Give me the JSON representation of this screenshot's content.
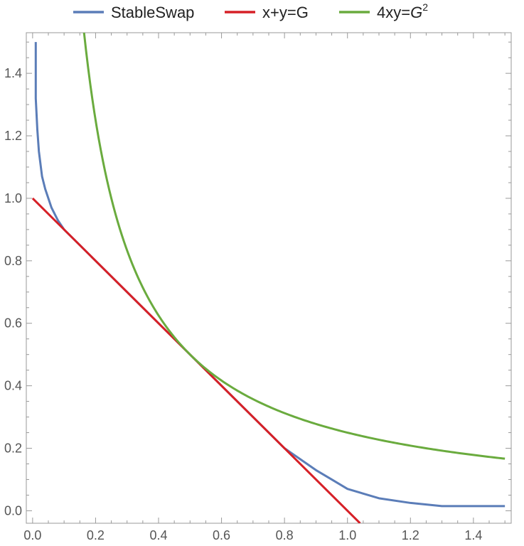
{
  "chart_data": {
    "type": "line",
    "title": "",
    "xlabel": "",
    "ylabel": "",
    "xlim": [
      -0.02,
      1.52
    ],
    "ylim": [
      -0.04,
      1.53
    ],
    "grid": false,
    "legend_position": "top",
    "x_ticks": [
      "0.0",
      "0.2",
      "0.4",
      "0.6",
      "0.8",
      "1.0",
      "1.2",
      "1.4"
    ],
    "y_ticks": [
      "0.0",
      "0.2",
      "0.4",
      "0.6",
      "0.8",
      "1.0",
      "1.2",
      "1.4"
    ],
    "legend": {
      "stableswap": "StableSwap",
      "sum": "x+y=G",
      "product_main": "4xy=",
      "product_G": "G",
      "product_exp": "2"
    },
    "series": [
      {
        "name": "StableSwap",
        "color": "#5b7db8",
        "x": [
          0.01,
          0.01,
          0.015,
          0.02,
          0.03,
          0.04,
          0.06,
          0.08,
          0.1,
          0.15,
          0.2,
          0.3,
          0.4,
          0.5,
          0.6,
          0.7,
          0.8,
          0.9,
          0.95,
          1.0,
          1.1,
          1.2,
          1.3,
          1.4,
          1.5
        ],
        "y": [
          1.5,
          1.32,
          1.22,
          1.15,
          1.07,
          1.03,
          0.97,
          0.93,
          0.9,
          0.85,
          0.8,
          0.7,
          0.6,
          0.5,
          0.4,
          0.3,
          0.2,
          0.13,
          0.1,
          0.07,
          0.04,
          0.025,
          0.015,
          0.015,
          0.015
        ]
      },
      {
        "name": "x+y=G",
        "color": "#d62027",
        "x": [
          0.0,
          1.04
        ],
        "y": [
          1.0,
          -0.04
        ]
      },
      {
        "name": "4xy=G^2",
        "color": "#6aab3e",
        "function": "y = 0.25 / x",
        "x_range": [
          0.163,
          1.5
        ]
      }
    ]
  }
}
